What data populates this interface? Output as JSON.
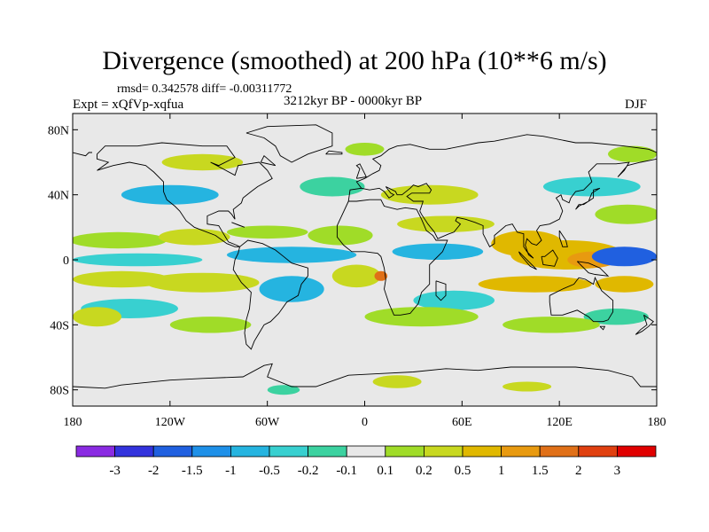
{
  "chart_data": {
    "type": "contour-map",
    "title": "Divergence (smoothed) at 200 hPa (10**6 m/s)",
    "rmsd_label": "rmsd= 0.342578 diff= -0.00311772",
    "experiment_label": "Expt = xQfVp-xqfua",
    "period_label": "3212kyr BP - 0000kyr BP",
    "season_label": "DJF",
    "xlim": [
      -180,
      180
    ],
    "ylim": [
      -90,
      90
    ],
    "x_ticks": [
      {
        "value": -180,
        "label": "180"
      },
      {
        "value": -120,
        "label": "120W"
      },
      {
        "value": -60,
        "label": "60W"
      },
      {
        "value": 0,
        "label": "0"
      },
      {
        "value": 60,
        "label": "60E"
      },
      {
        "value": 120,
        "label": "120E"
      },
      {
        "value": 180,
        "label": "180"
      }
    ],
    "y_ticks": [
      {
        "value": 80,
        "label": "80N"
      },
      {
        "value": 40,
        "label": "40N"
      },
      {
        "value": 0,
        "label": "0"
      },
      {
        "value": -40,
        "label": "40S"
      },
      {
        "value": -80,
        "label": "80S"
      }
    ],
    "colorbar": {
      "colors": [
        "#8a2be2",
        "#3333dd",
        "#2060e0",
        "#1e90e8",
        "#25b4e0",
        "#38d0d0",
        "#3cd2a0",
        "#e8e8e8",
        "#a0dc28",
        "#c8d820",
        "#e0b800",
        "#e89a10",
        "#e07018",
        "#e04010",
        "#e00000"
      ],
      "labels": [
        "-3",
        "-2",
        "-1.5",
        "-1",
        "-0.5",
        "-0.2",
        "-0.1",
        "0.1",
        "0.2",
        "0.5",
        "1",
        "1.5",
        "2",
        "3"
      ]
    },
    "field_patches": [
      {
        "lon": -152,
        "lat": 12,
        "rx": 30,
        "ry": 5,
        "level": 8
      },
      {
        "lon": -105,
        "lat": 14,
        "rx": 22,
        "ry": 5,
        "level": 9
      },
      {
        "lon": -60,
        "lat": 17,
        "rx": 25,
        "ry": 4,
        "level": 8
      },
      {
        "lon": -15,
        "lat": 15,
        "rx": 20,
        "ry": 6,
        "level": 8
      },
      {
        "lon": 50,
        "lat": 22,
        "rx": 30,
        "ry": 5,
        "level": 9
      },
      {
        "lon": 100,
        "lat": 10,
        "rx": 22,
        "ry": 8,
        "level": 10
      },
      {
        "lon": 125,
        "lat": 3,
        "rx": 35,
        "ry": 9,
        "level": 10
      },
      {
        "lon": 140,
        "lat": 0,
        "rx": 15,
        "ry": 5,
        "level": 11
      },
      {
        "lon": 162,
        "lat": 28,
        "rx": 20,
        "ry": 6,
        "level": 8
      },
      {
        "lon": -140,
        "lat": 0,
        "rx": 40,
        "ry": 4,
        "level": 5
      },
      {
        "lon": -45,
        "lat": 3,
        "rx": 40,
        "ry": 5,
        "level": 4
      },
      {
        "lon": 45,
        "lat": 5,
        "rx": 28,
        "ry": 5,
        "level": 4
      },
      {
        "lon": 160,
        "lat": 2,
        "rx": 20,
        "ry": 6,
        "level": 2
      },
      {
        "lon": -150,
        "lat": -12,
        "rx": 30,
        "ry": 5,
        "level": 9
      },
      {
        "lon": -100,
        "lat": -14,
        "rx": 35,
        "ry": 6,
        "level": 9
      },
      {
        "lon": -5,
        "lat": -10,
        "rx": 15,
        "ry": 7,
        "level": 9
      },
      {
        "lon": 10,
        "lat": -10,
        "rx": 4,
        "ry": 3,
        "level": 12
      },
      {
        "lon": 105,
        "lat": -15,
        "rx": 35,
        "ry": 5,
        "level": 10
      },
      {
        "lon": 160,
        "lat": -15,
        "rx": 18,
        "ry": 5,
        "level": 10
      },
      {
        "lon": -145,
        "lat": -30,
        "rx": 30,
        "ry": 6,
        "level": 5
      },
      {
        "lon": -45,
        "lat": -18,
        "rx": 20,
        "ry": 8,
        "level": 4
      },
      {
        "lon": 55,
        "lat": -25,
        "rx": 25,
        "ry": 6,
        "level": 5
      },
      {
        "lon": 155,
        "lat": -35,
        "rx": 20,
        "ry": 5,
        "level": 6
      },
      {
        "lon": -165,
        "lat": -35,
        "rx": 15,
        "ry": 6,
        "level": 9
      },
      {
        "lon": -95,
        "lat": -40,
        "rx": 25,
        "ry": 5,
        "level": 8
      },
      {
        "lon": 35,
        "lat": -35,
        "rx": 35,
        "ry": 6,
        "level": 8
      },
      {
        "lon": 115,
        "lat": -40,
        "rx": 30,
        "ry": 5,
        "level": 8
      },
      {
        "lon": -120,
        "lat": 40,
        "rx": 30,
        "ry": 6,
        "level": 4
      },
      {
        "lon": -20,
        "lat": 45,
        "rx": 20,
        "ry": 6,
        "level": 6
      },
      {
        "lon": 40,
        "lat": 40,
        "rx": 30,
        "ry": 6,
        "level": 9
      },
      {
        "lon": 140,
        "lat": 45,
        "rx": 30,
        "ry": 6,
        "level": 5
      },
      {
        "lon": -100,
        "lat": 60,
        "rx": 25,
        "ry": 5,
        "level": 9
      },
      {
        "lon": 0,
        "lat": 68,
        "rx": 12,
        "ry": 4,
        "level": 8
      },
      {
        "lon": 165,
        "lat": 65,
        "rx": 15,
        "ry": 5,
        "level": 8
      },
      {
        "lon": 20,
        "lat": -75,
        "rx": 15,
        "ry": 4,
        "level": 9
      },
      {
        "lon": 100,
        "lat": -78,
        "rx": 15,
        "ry": 3,
        "level": 9
      },
      {
        "lon": -50,
        "lat": -80,
        "rx": 10,
        "ry": 3,
        "level": 6
      }
    ]
  }
}
